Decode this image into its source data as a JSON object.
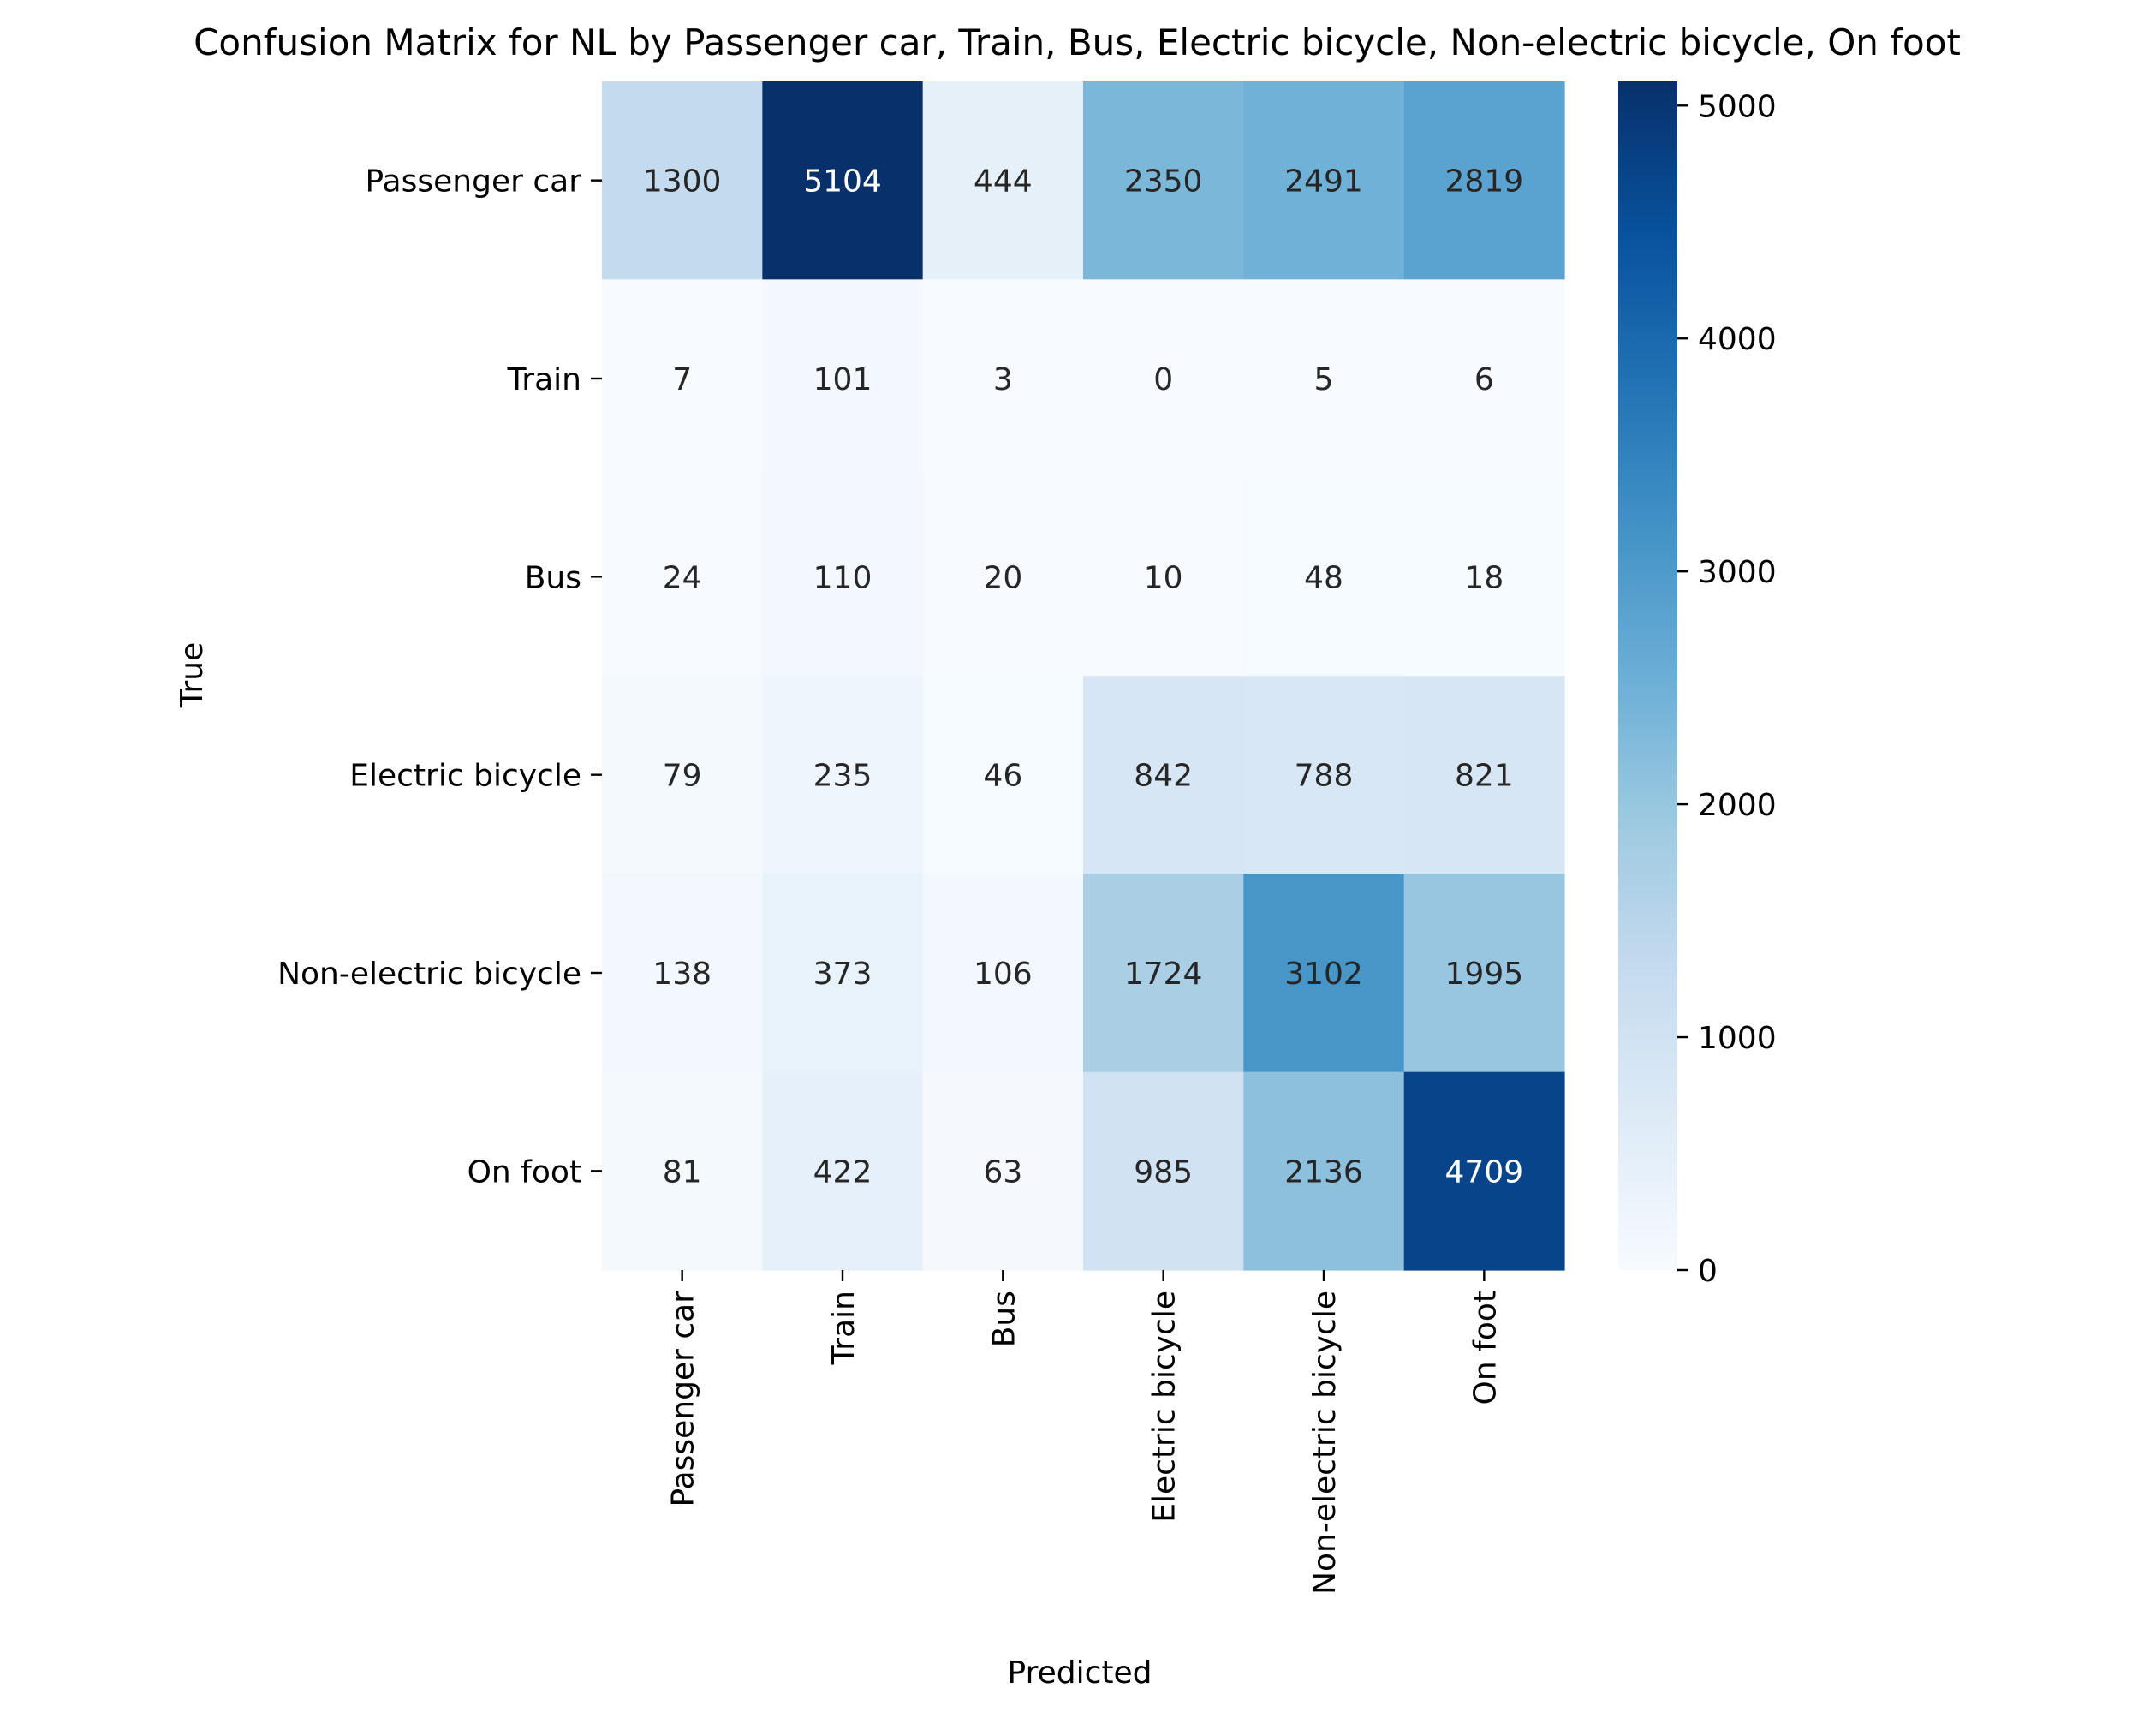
{
  "chart_data": {
    "type": "heatmap",
    "title": "Confusion Matrix for NL by Passenger car, Train, Bus, Electric bicycle, Non-electric bicycle, On foot",
    "xlabel": "Predicted",
    "ylabel": "True",
    "x_categories": [
      "Passenger car",
      "Train",
      "Bus",
      "Electric bicycle",
      "Non-electric bicycle",
      "On foot"
    ],
    "y_categories": [
      "Passenger car",
      "Train",
      "Bus",
      "Electric bicycle",
      "Non-electric bicycle",
      "On foot"
    ],
    "values": [
      [
        1300,
        5104,
        444,
        2350,
        2491,
        2819
      ],
      [
        7,
        101,
        3,
        0,
        5,
        6
      ],
      [
        24,
        110,
        20,
        10,
        48,
        18
      ],
      [
        79,
        235,
        46,
        842,
        788,
        821
      ],
      [
        138,
        373,
        106,
        1724,
        3102,
        1995
      ],
      [
        81,
        422,
        63,
        985,
        2136,
        4709
      ]
    ],
    "colorbar": {
      "colormap": "Blues",
      "vmin": 0,
      "vmax": 5104,
      "ticks": [
        0,
        1000,
        2000,
        3000,
        4000,
        5000
      ]
    },
    "annotation_colors": {
      "dark_text": "#262626",
      "light_text": "#ffffff"
    },
    "grid": false,
    "legend": "none"
  }
}
